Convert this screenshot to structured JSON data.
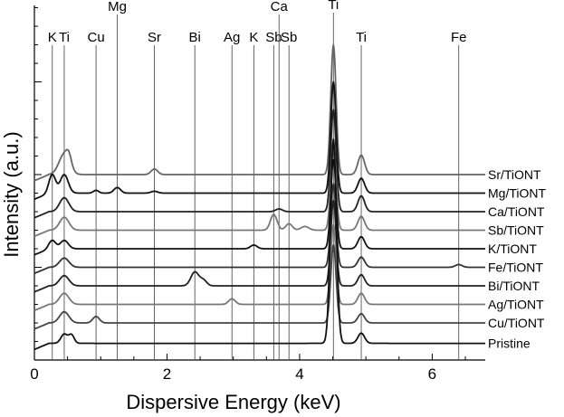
{
  "chart_data": {
    "type": "line",
    "xlabel": "Dispersive Energy (keV)",
    "ylabel": "Intensity (a.u.)",
    "xlim": [
      0,
      6.8
    ],
    "x_ticks": [
      "0",
      "2",
      "4",
      "6"
    ],
    "x_tick_values": [
      0,
      2,
      4,
      6
    ],
    "y_tick_labels_shown": false,
    "element_lines": [
      {
        "name": "K",
        "x": 0.27
      },
      {
        "name": "Ti",
        "x": 0.45
      },
      {
        "name": "Cu",
        "x": 0.93
      },
      {
        "name": "Mg",
        "x": 1.25
      },
      {
        "name": "Sr",
        "x": 1.81
      },
      {
        "name": "Bi",
        "x": 2.42
      },
      {
        "name": "Ag",
        "x": 2.98
      },
      {
        "name": "K",
        "x": 3.31
      },
      {
        "name": "Sb",
        "x": 3.61
      },
      {
        "name": "Ca",
        "x": 3.69
      },
      {
        "name": "Sb",
        "x": 3.84
      },
      {
        "name": "Ti",
        "x": 4.51
      },
      {
        "name": "Ti",
        "x": 4.93
      },
      {
        "name": "Fe",
        "x": 6.4
      }
    ],
    "series": [
      {
        "name": "Sr/TiONT",
        "baseline": 10.0,
        "color": "#666666",
        "peaks": [
          [
            0.45,
            1.1,
            0.08
          ],
          [
            0.52,
            0.5,
            0.04
          ],
          [
            1.81,
            0.3,
            0.05
          ],
          [
            4.51,
            7.0,
            0.04
          ],
          [
            4.93,
            1.05,
            0.05
          ]
        ]
      },
      {
        "name": "Mg/TiONT",
        "baseline": 9.0,
        "color": "#111111",
        "peaks": [
          [
            0.27,
            1.0,
            0.05
          ],
          [
            0.45,
            1.0,
            0.06
          ],
          [
            0.93,
            0.15,
            0.04
          ],
          [
            1.25,
            0.3,
            0.05
          ],
          [
            1.81,
            0.1,
            0.05
          ],
          [
            4.51,
            6.0,
            0.04
          ],
          [
            4.93,
            0.8,
            0.05
          ]
        ]
      },
      {
        "name": "Ca/TiONT",
        "baseline": 8.0,
        "color": "#222222",
        "peaks": [
          [
            0.45,
            0.75,
            0.07
          ],
          [
            3.69,
            0.15,
            0.05
          ],
          [
            4.51,
            5.5,
            0.04
          ],
          [
            4.93,
            0.85,
            0.05
          ]
        ]
      },
      {
        "name": "Sb/TiONT",
        "baseline": 7.0,
        "color": "#777777",
        "peaks": [
          [
            0.45,
            0.7,
            0.07
          ],
          [
            3.61,
            0.85,
            0.05
          ],
          [
            3.84,
            0.35,
            0.05
          ],
          [
            4.08,
            0.2,
            0.06
          ],
          [
            4.51,
            4.5,
            0.04
          ],
          [
            4.93,
            0.75,
            0.05
          ]
        ]
      },
      {
        "name": "K/TiONT",
        "baseline": 6.0,
        "color": "#111111",
        "peaks": [
          [
            0.27,
            0.45,
            0.05
          ],
          [
            0.45,
            0.45,
            0.06
          ],
          [
            3.31,
            0.2,
            0.05
          ],
          [
            4.51,
            4.8,
            0.04
          ],
          [
            4.93,
            0.65,
            0.05
          ]
        ]
      },
      {
        "name": "Fe/TiONT",
        "baseline": 5.0,
        "color": "#333333",
        "peaks": [
          [
            0.45,
            0.5,
            0.07
          ],
          [
            4.51,
            4.5,
            0.04
          ],
          [
            4.93,
            0.55,
            0.05
          ],
          [
            6.4,
            0.15,
            0.05
          ]
        ]
      },
      {
        "name": "Bi/TiONT",
        "baseline": 4.0,
        "color": "#222222",
        "peaks": [
          [
            0.45,
            0.55,
            0.07
          ],
          [
            2.42,
            0.75,
            0.06
          ],
          [
            2.55,
            0.3,
            0.05
          ],
          [
            4.51,
            4.6,
            0.04
          ],
          [
            4.93,
            0.6,
            0.05
          ]
        ]
      },
      {
        "name": "Ag/TiONT",
        "baseline": 3.0,
        "color": "#777777",
        "peaks": [
          [
            0.45,
            0.6,
            0.07
          ],
          [
            2.98,
            0.3,
            0.05
          ],
          [
            4.51,
            4.3,
            0.04
          ],
          [
            4.93,
            0.6,
            0.05
          ]
        ]
      },
      {
        "name": "Cu/TiONT",
        "baseline": 2.0,
        "color": "#444444",
        "peaks": [
          [
            0.45,
            0.6,
            0.07
          ],
          [
            0.93,
            0.35,
            0.05
          ],
          [
            4.51,
            4.2,
            0.04
          ],
          [
            4.93,
            0.5,
            0.05
          ]
        ]
      },
      {
        "name": "Pristine",
        "baseline": 0.9,
        "color": "#111111",
        "peaks": [
          [
            0.45,
            0.5,
            0.05
          ],
          [
            0.56,
            0.45,
            0.04
          ],
          [
            4.51,
            11.0,
            0.045
          ],
          [
            4.93,
            0.55,
            0.05
          ]
        ]
      }
    ]
  }
}
